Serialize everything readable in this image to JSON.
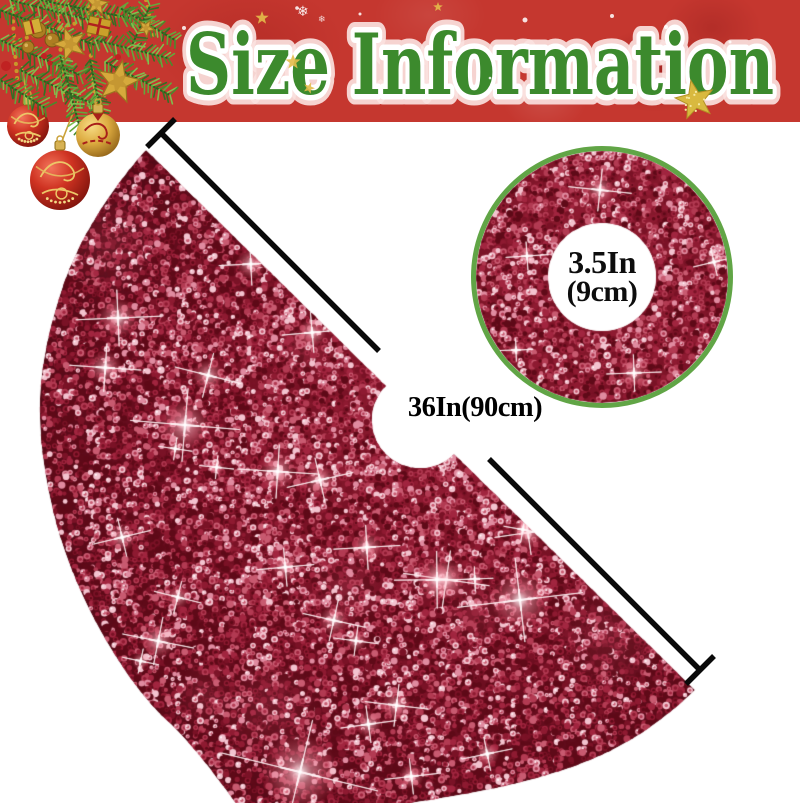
{
  "banner": {
    "title": "Size Information",
    "background_color": "#c5372f",
    "title_fill": "#3c8a2d",
    "title_stroke": "#ffffff"
  },
  "measurements": {
    "diameter_label": "36In(90cm)",
    "inner_hole": {
      "line1": "3.5In",
      "line2": "(9cm)"
    }
  },
  "inset": {
    "border_color": "#61a546"
  },
  "skirt": {
    "base_color": "#6d0e20",
    "sequin_palette": [
      "#5f0a18",
      "#7a1226",
      "#8e1a31",
      "#a1253f",
      "#b23a52",
      "#c85a70",
      "#e08ba0",
      "#f3c3cf"
    ],
    "sparkle_color": "#ffffff"
  },
  "lines": {
    "color": "#0a0a0a"
  }
}
